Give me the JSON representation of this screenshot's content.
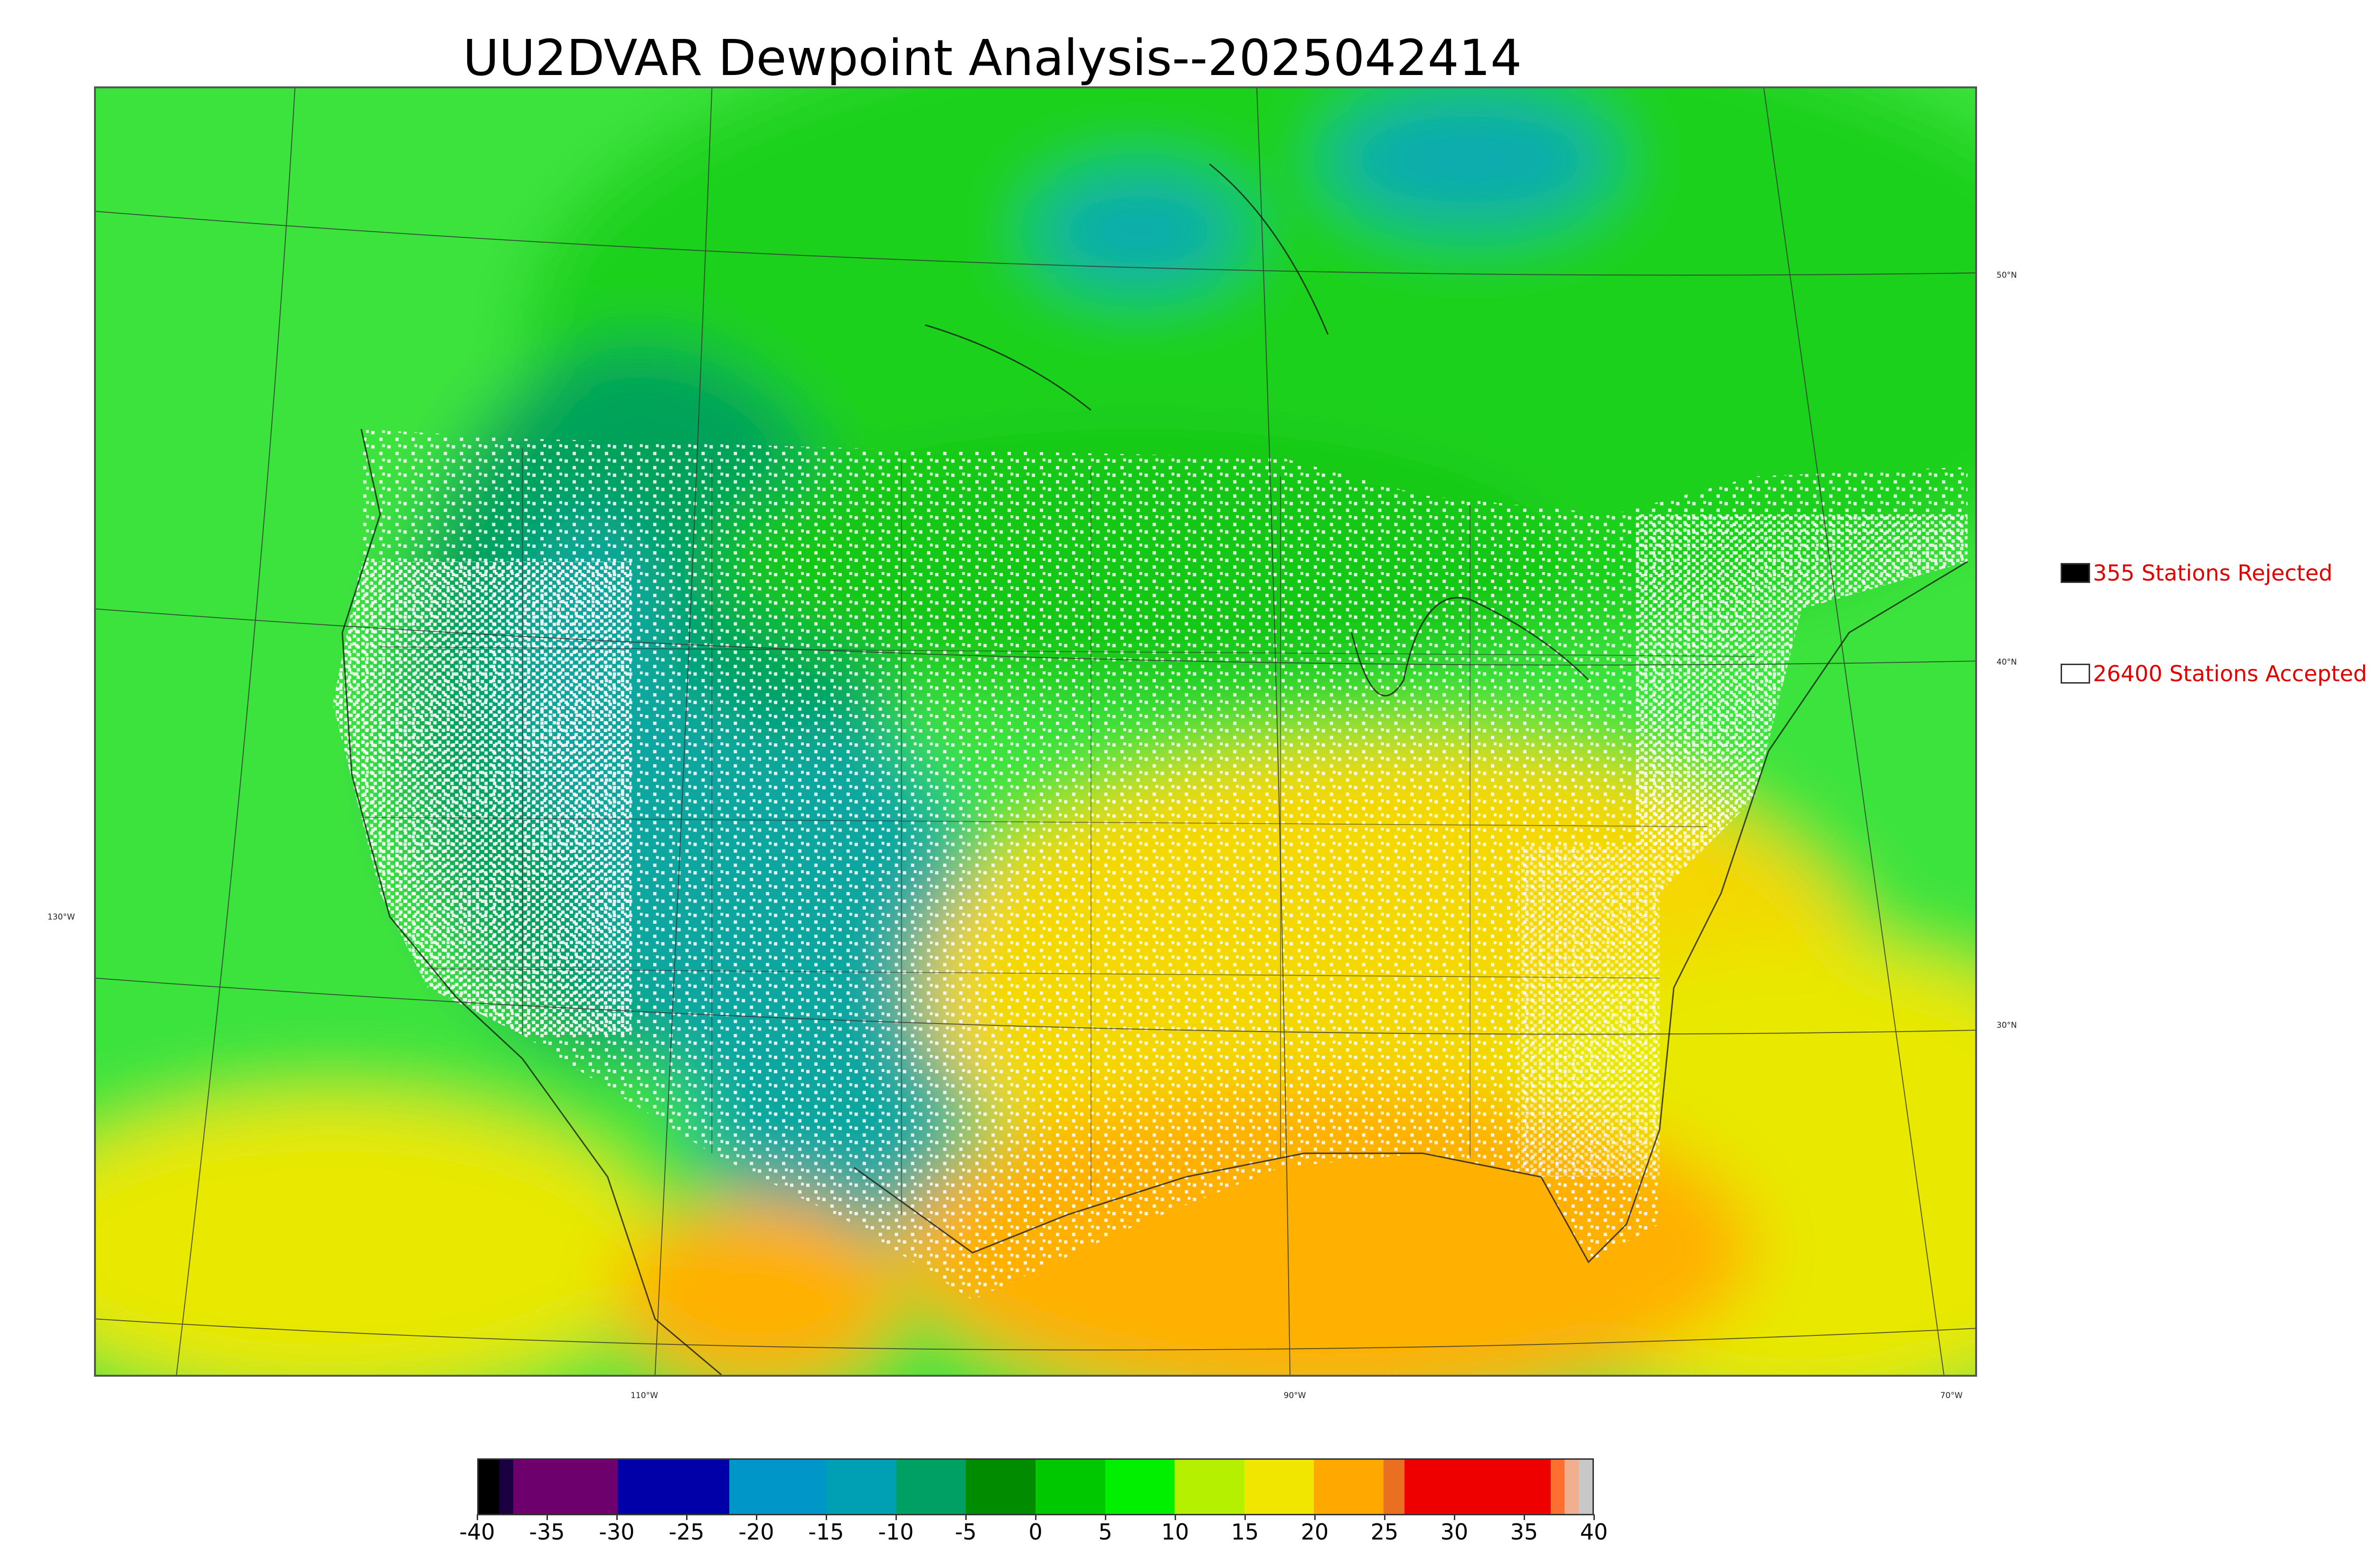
{
  "title": "UU2DVAR Dewpoint Analysis--2025042414",
  "map": {
    "longitude_labels": [
      "130°W",
      "110°W",
      "90°W",
      "70°W"
    ],
    "latitude_labels": [
      "50°N",
      "40°N",
      "30°N"
    ],
    "station_marker_color": "#ffffff",
    "rejected_marker_color": "#000000"
  },
  "legend": {
    "rejected": {
      "label": "355 Stations Rejected",
      "color": "#000000"
    },
    "accepted": {
      "label": "26400 Stations Accepted",
      "color": "#ffffff"
    },
    "text_color": "#e00000"
  },
  "colorbar": {
    "range": [
      -40,
      40
    ],
    "ticks": [
      "-40",
      "-35",
      "-30",
      "-25",
      "-20",
      "-15",
      "-10",
      "-5",
      "0",
      "5",
      "10",
      "15",
      "20",
      "25",
      "30",
      "35",
      "40"
    ],
    "segments": [
      {
        "from": -40,
        "to": -38.5,
        "color": "#000000"
      },
      {
        "from": -38.5,
        "to": -37.5,
        "color": "#1a0040"
      },
      {
        "from": -37.5,
        "to": -30,
        "color": "#6e006e"
      },
      {
        "from": -30,
        "to": -22,
        "color": "#0000a8"
      },
      {
        "from": -22,
        "to": -15,
        "color": "#0096c8"
      },
      {
        "from": -15,
        "to": -10,
        "color": "#00a0b4"
      },
      {
        "from": -10,
        "to": -5,
        "color": "#00a064"
      },
      {
        "from": -5,
        "to": 0,
        "color": "#008c00"
      },
      {
        "from": 0,
        "to": 5,
        "color": "#00c800"
      },
      {
        "from": 5,
        "to": 10,
        "color": "#00f000"
      },
      {
        "from": 10,
        "to": 15,
        "color": "#b4f000"
      },
      {
        "from": 15,
        "to": 20,
        "color": "#f0e600"
      },
      {
        "from": 20,
        "to": 25,
        "color": "#ffa800"
      },
      {
        "from": 25,
        "to": 26.5,
        "color": "#e87020"
      },
      {
        "from": 26.5,
        "to": 37,
        "color": "#ee0000"
      },
      {
        "from": 37,
        "to": 38,
        "color": "#ff7030"
      },
      {
        "from": 38,
        "to": 39,
        "color": "#f0b090"
      },
      {
        "from": 39,
        "to": 40,
        "color": "#c8c8c8"
      }
    ]
  },
  "field_colors": {
    "ocean_pacific": "#3ee33e",
    "canada": "#1fd11f",
    "mountains": "#00a25a",
    "dry_basin": "#0aa7a0",
    "plains": "#16c816",
    "southeast": "#f4d800",
    "gulf": "#ffb000",
    "atlantic": "#e8e800",
    "hudson": "#0aaab0"
  }
}
